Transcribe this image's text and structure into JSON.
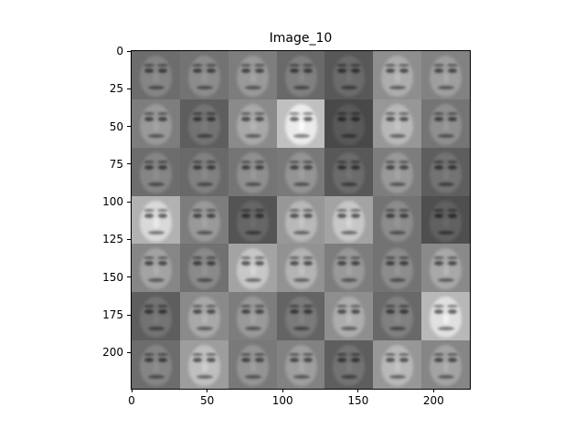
{
  "figure": {
    "title": "Image_10",
    "xticks": [
      "0",
      "50",
      "100",
      "150",
      "200"
    ],
    "yticks": [
      "0",
      "25",
      "50",
      "75",
      "100",
      "125",
      "150",
      "175",
      "200"
    ],
    "xtick_values": [
      0,
      50,
      100,
      150,
      200
    ],
    "ytick_values": [
      0,
      25,
      50,
      75,
      100,
      125,
      150,
      175,
      200
    ],
    "extent": [
      0,
      224
    ],
    "grid": {
      "rows": 7,
      "cols": 7,
      "tile_size_units": 32
    },
    "tile_brightness": [
      [
        0.52,
        0.55,
        0.6,
        0.5,
        0.42,
        0.68,
        0.62
      ],
      [
        0.6,
        0.45,
        0.66,
        0.92,
        0.35,
        0.72,
        0.56
      ],
      [
        0.52,
        0.5,
        0.56,
        0.58,
        0.42,
        0.6,
        0.45
      ],
      [
        0.85,
        0.6,
        0.4,
        0.72,
        0.78,
        0.55,
        0.38
      ],
      [
        0.64,
        0.54,
        0.78,
        0.7,
        0.6,
        0.55,
        0.66
      ],
      [
        0.45,
        0.66,
        0.6,
        0.48,
        0.68,
        0.5,
        0.88
      ],
      [
        0.52,
        0.75,
        0.58,
        0.62,
        0.45,
        0.72,
        0.64
      ]
    ]
  }
}
